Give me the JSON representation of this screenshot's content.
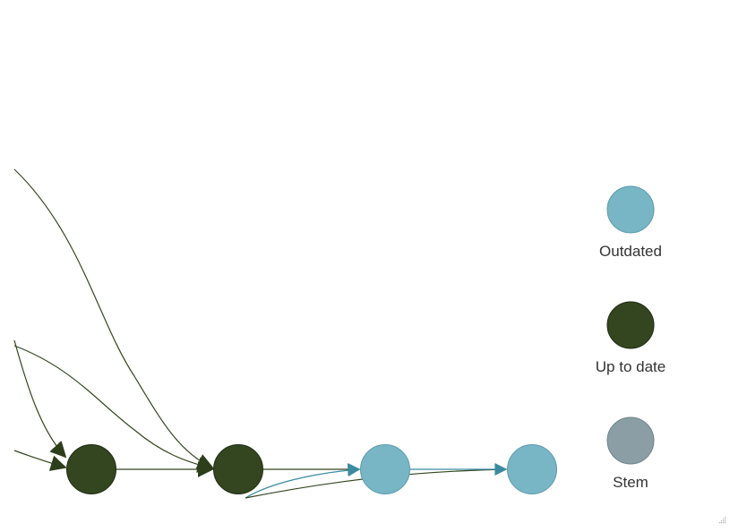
{
  "legend": {
    "items": [
      {
        "label": "Outdated",
        "color": "#78b6c6"
      },
      {
        "label": "Up to date",
        "color": "#334620"
      },
      {
        "label": "Stem",
        "color": "#8b9ea6"
      }
    ]
  },
  "graph": {
    "edge_color_dark": "#334620",
    "edge_color_light": "#3b8aa0",
    "node_stroke_dark": "#1f2b12",
    "node_stroke_light": "#5d9aab"
  }
}
